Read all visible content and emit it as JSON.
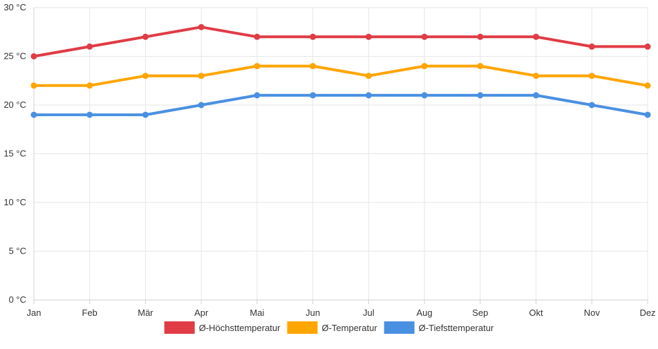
{
  "chart_data": {
    "type": "line",
    "categories": [
      "Jan",
      "Feb",
      "Mär",
      "Apr",
      "Mai",
      "Jun",
      "Jul",
      "Aug",
      "Sep",
      "Okt",
      "Nov",
      "Dez"
    ],
    "y_unit": " °C",
    "ylim": [
      0,
      30
    ],
    "y_ticks": [
      0,
      5,
      10,
      15,
      20,
      25,
      30
    ],
    "grid": true,
    "legend_position": "bottom",
    "series": [
      {
        "name": "Ø-Höchsttemperatur",
        "color": "#e03c45",
        "values": [
          25,
          26,
          27,
          28,
          27,
          27,
          27,
          27,
          27,
          27,
          26,
          26
        ]
      },
      {
        "name": "Ø-Temperatur",
        "color": "#ffa500",
        "values": [
          22,
          22,
          23,
          23,
          24,
          24,
          23,
          24,
          24,
          23,
          23,
          22
        ]
      },
      {
        "name": "Ø-Tiefsttemperatur",
        "color": "#4a90e2",
        "values": [
          19,
          19,
          19,
          20,
          21,
          21,
          21,
          21,
          21,
          21,
          20,
          19
        ]
      }
    ]
  }
}
